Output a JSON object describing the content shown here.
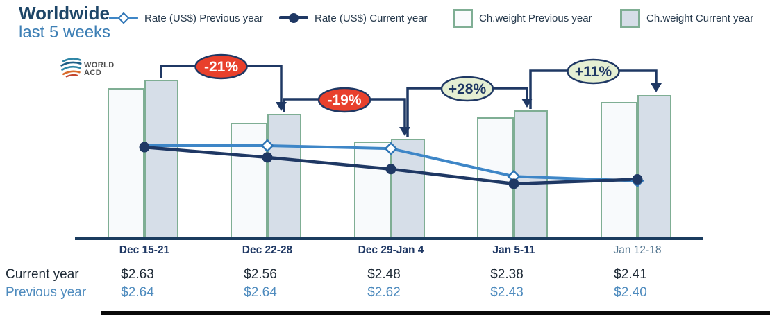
{
  "header": {
    "title": "Worldwide",
    "subtitle": "last 5 weeks",
    "logo": {
      "line1": "WORLD",
      "line2": "ACD"
    }
  },
  "legend": {
    "items": [
      {
        "label": "Rate (US$) Previous year",
        "swatch": "line-diamond"
      },
      {
        "label": "Rate (US$) Current year",
        "swatch": "line-circle"
      },
      {
        "label": "Ch.weight Previous year",
        "swatch": "box-light"
      },
      {
        "label": "Ch.weight Current year",
        "swatch": "box-shaded"
      }
    ]
  },
  "chart_data": {
    "type": "bar",
    "subtype": "grouped chargeable-weight bars with two overlaid rate lines",
    "title": "Worldwide last 5 weeks",
    "categories": [
      "Dec 15-21",
      "Dec 22-28",
      "Dec 29-Jan 4",
      "Jan 5-11",
      "Jan 12-18"
    ],
    "bar_series": [
      {
        "name": "Ch.weight Previous year",
        "values": [
          94.8,
          72.9,
          61.1,
          76.4,
          86.0
        ]
      },
      {
        "name": "Ch.weight Current year",
        "values": [
          100,
          78.6,
          62.9,
          80.8,
          90.4
        ]
      }
    ],
    "bar_value_note": "chargeable-weight index estimated from bar heights (week 1 current year = 100); no value axis is shown in the figure",
    "line_series": [
      {
        "name": "Rate (US$) Previous year",
        "values": [
          2.64,
          2.64,
          2.62,
          2.43,
          2.4
        ]
      },
      {
        "name": "Rate (US$) Current year",
        "values": [
          2.63,
          2.56,
          2.48,
          2.38,
          2.41
        ]
      }
    ],
    "annotations": [
      {
        "label": "-21%",
        "from": 0,
        "to": 1,
        "kind": "negative"
      },
      {
        "label": "-19%",
        "from": 1,
        "to": 2,
        "kind": "negative"
      },
      {
        "label": "+28%",
        "from": 2,
        "to": 3,
        "kind": "positive"
      },
      {
        "label": "+11%",
        "from": 3,
        "to": 4,
        "kind": "positive"
      }
    ],
    "legend_position": "top",
    "grid": false,
    "value_axis": "none (rates listed in table below chart)"
  },
  "table": {
    "rows": [
      {
        "label": "Current year",
        "values": [
          "$2.63",
          "$2.56",
          "$2.48",
          "$2.38",
          "$2.41"
        ]
      },
      {
        "label": "Previous year",
        "values": [
          "$2.64",
          "$2.64",
          "$2.62",
          "$2.43",
          "$2.40"
        ]
      }
    ]
  },
  "colors": {
    "navy": "#1F3864",
    "rate_prev_line": "#3E86C7",
    "rate_prev_marker_border": "#2E75B6",
    "bar_border_green": "#7FAE94",
    "bar_prev_fill": "#F8FAFC",
    "bar_cur_fill": "#D6DEE8",
    "negative_fill": "#E8402C",
    "negative_text": "#FFFFFF",
    "positive_fill": "#E5EFD3",
    "positive_text": "#1F3864",
    "axis_line": "#1B3C5F",
    "table_current_color": "#1E2A36",
    "table_previous_color": "#4E8BBE",
    "bottom_bar": "#0A0A0A"
  }
}
